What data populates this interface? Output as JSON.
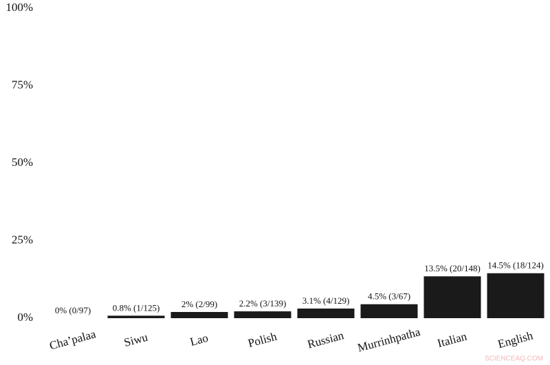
{
  "chart_data": {
    "type": "bar",
    "categories": [
      "Cha’palaa",
      "Siwu",
      "Lao",
      "Polish",
      "Russian",
      "Murrinhpatha",
      "Italian",
      "English"
    ],
    "values": [
      0,
      0.8,
      2,
      2.2,
      3.1,
      4.5,
      13.5,
      14.5
    ],
    "value_labels": [
      "0% (0/97)",
      "0.8% (1/125)",
      "2% (2/99)",
      "2.2% (3/139)",
      "3.1% (4/129)",
      "4.5% (3/67)",
      "13.5% (20/148)",
      "14.5% (18/124)"
    ],
    "color": "#1a1a1a",
    "ylim": [
      0,
      100
    ],
    "yticks": [
      {
        "value": 0,
        "label": "0%"
      },
      {
        "value": 25,
        "label": "25%"
      },
      {
        "value": 50,
        "label": "50%"
      },
      {
        "value": 75,
        "label": "75%"
      },
      {
        "value": 100,
        "label": "100%"
      }
    ],
    "grid": false
  },
  "watermark": "SCIENCEAQ.COM"
}
